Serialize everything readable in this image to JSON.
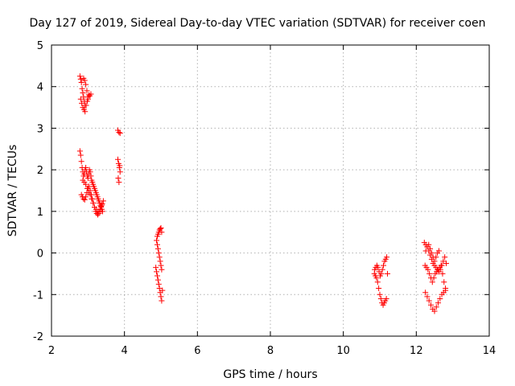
{
  "chart_data": {
    "type": "scatter",
    "title": "Day 127 of 2019, Sidereal Day-to-day VTEC variation (SDTVAR) for receiver coen",
    "xlabel": "GPS time / hours",
    "ylabel": "SDTVAR / TECUs",
    "xlim": [
      2,
      14
    ],
    "ylim": [
      -2,
      5
    ],
    "xticks": [
      "2",
      "4",
      "6",
      "8",
      "10",
      "12",
      "14"
    ],
    "yticks": [
      "-2",
      "-1",
      "0",
      "1",
      "2",
      "3",
      "4",
      "5"
    ],
    "grid": true,
    "marker": "+",
    "marker_color": "#ff0000",
    "series": [
      {
        "x": [
          2.78,
          2.8,
          2.82,
          2.84,
          2.86,
          2.88,
          2.9,
          2.92,
          2.8,
          2.83,
          2.86,
          2.89,
          2.92,
          2.95,
          2.98,
          3.0,
          3.02,
          3.05,
          3.08,
          2.88,
          2.91,
          2.94,
          2.97,
          3.0,
          2.78,
          2.8,
          2.82,
          2.84,
          2.86,
          2.88,
          2.9,
          2.92,
          2.94,
          2.96,
          2.98,
          3.0,
          3.02,
          3.04,
          3.06,
          3.08,
          3.1,
          3.12,
          3.14,
          3.16,
          3.18,
          3.2,
          3.22,
          3.24,
          3.26,
          3.28,
          3.3,
          3.32,
          3.34,
          3.36,
          3.38,
          3.4,
          2.82,
          2.85,
          2.88,
          2.91,
          2.94,
          2.97,
          3.0,
          3.03,
          3.06,
          3.09,
          3.12,
          3.15,
          3.18,
          3.21,
          3.24,
          3.27,
          3.3,
          3.33,
          3.36,
          3.39,
          2.86,
          2.9,
          2.94,
          2.98,
          3.02,
          3.06,
          3.1,
          3.14,
          3.18,
          3.22,
          3.26,
          3.3,
          3.34,
          3.38,
          3.42,
          3.82,
          3.85,
          3.88,
          3.82,
          3.84,
          3.86,
          3.88,
          3.83,
          3.85,
          3.87
        ],
        "y": [
          4.25,
          4.18,
          4.1,
          3.95,
          3.85,
          3.75,
          3.65,
          3.55,
          3.7,
          3.6,
          3.5,
          3.45,
          3.4,
          3.55,
          3.65,
          3.75,
          3.8,
          3.78,
          3.82,
          4.2,
          4.15,
          4.05,
          3.9,
          3.7,
          2.45,
          2.35,
          2.2,
          2.05,
          1.95,
          1.85,
          1.9,
          2.0,
          2.05,
          1.95,
          1.85,
          1.8,
          1.9,
          2.0,
          1.95,
          1.85,
          1.75,
          1.7,
          1.65,
          1.6,
          1.55,
          1.5,
          1.45,
          1.4,
          1.35,
          1.3,
          1.25,
          1.2,
          1.15,
          1.1,
          1.05,
          1.0,
          1.4,
          1.35,
          1.3,
          1.28,
          1.35,
          1.45,
          1.55,
          1.6,
          1.5,
          1.4,
          1.3,
          1.2,
          1.1,
          1.0,
          0.95,
          0.92,
          0.98,
          1.05,
          1.12,
          1.18,
          1.75,
          1.7,
          1.65,
          1.55,
          1.45,
          1.4,
          1.3,
          1.2,
          1.1,
          1.05,
          1.0,
          0.95,
          1.05,
          1.15,
          1.25,
          2.95,
          2.9,
          2.88,
          2.25,
          2.15,
          2.05,
          1.95,
          1.8,
          1.7,
          2.1
        ],
        "name": ""
      },
      {
        "x": [
          4.88,
          4.9,
          4.92,
          4.94,
          4.96,
          4.98,
          5.0,
          5.02,
          4.9,
          4.92,
          4.94,
          4.96,
          4.98,
          5.0,
          5.02,
          4.86,
          4.88,
          4.9,
          4.92,
          4.94,
          4.96,
          4.98,
          5.0,
          5.02,
          5.04
        ],
        "y": [
          0.3,
          0.4,
          0.45,
          0.5,
          0.55,
          0.58,
          0.6,
          0.5,
          0.2,
          0.1,
          0.0,
          -0.1,
          -0.2,
          -0.3,
          -0.4,
          -0.35,
          -0.45,
          -0.55,
          -0.65,
          -0.75,
          -0.85,
          -0.95,
          -1.05,
          -1.15,
          -0.9
        ],
        "name": ""
      },
      {
        "x": [
          10.85,
          10.88,
          10.91,
          10.94,
          10.97,
          11.0,
          11.03,
          11.06,
          11.09,
          11.12,
          11.15,
          11.18,
          10.86,
          10.89,
          10.92,
          10.95,
          10.98,
          11.01,
          11.04,
          11.07,
          11.1,
          11.13,
          11.16,
          11.19,
          11.21
        ],
        "y": [
          -0.5,
          -0.55,
          -0.6,
          -0.7,
          -0.85,
          -1.0,
          -1.1,
          -1.2,
          -1.25,
          -1.2,
          -1.15,
          -1.1,
          -0.4,
          -0.35,
          -0.3,
          -0.35,
          -0.45,
          -0.55,
          -0.5,
          -0.4,
          -0.3,
          -0.2,
          -0.15,
          -0.1,
          -0.5
        ],
        "name": ""
      },
      {
        "x": [
          12.22,
          12.26,
          12.3,
          12.34,
          12.38,
          12.42,
          12.46,
          12.5,
          12.54,
          12.58,
          12.62,
          12.66,
          12.7,
          12.74,
          12.78,
          12.82,
          12.24,
          12.28,
          12.32,
          12.36,
          12.4,
          12.44,
          12.48,
          12.52,
          12.56,
          12.6,
          12.64,
          12.68,
          12.72,
          12.76,
          12.8,
          12.25,
          12.3,
          12.35,
          12.4,
          12.45,
          12.5,
          12.55,
          12.6,
          12.65,
          12.7,
          12.75,
          12.8,
          12.26,
          12.3,
          12.34,
          12.38,
          12.42,
          12.46,
          12.5,
          12.54,
          12.58,
          12.62
        ],
        "y": [
          0.25,
          0.2,
          0.15,
          0.05,
          -0.05,
          -0.15,
          -0.25,
          -0.3,
          -0.35,
          -0.4,
          -0.45,
          -0.4,
          -0.3,
          -0.2,
          -0.1,
          -0.25,
          -0.3,
          -0.35,
          -0.4,
          -0.5,
          -0.6,
          -0.7,
          -0.6,
          -0.5,
          -0.45,
          -0.4,
          -0.35,
          -0.3,
          -0.5,
          -0.7,
          -0.9,
          -0.95,
          -1.05,
          -1.15,
          -1.25,
          -1.35,
          -1.4,
          -1.3,
          -1.2,
          -1.1,
          -1.0,
          -0.95,
          -0.85,
          0.05,
          0.15,
          0.2,
          0.1,
          0.0,
          -0.1,
          -0.2,
          -0.1,
          0.0,
          0.05
        ],
        "name": ""
      }
    ]
  }
}
